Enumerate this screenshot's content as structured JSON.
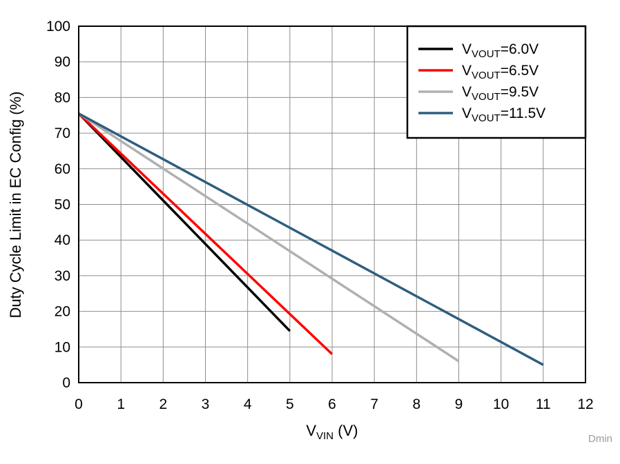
{
  "chart_data": {
    "type": "line",
    "title": "",
    "xlabel": {
      "main": "V",
      "sub": "VIN",
      "suffix": " (V)"
    },
    "ylabel": "Duty Cycle Limit in EC Config (%)",
    "xlim": [
      0,
      12
    ],
    "ylim": [
      0,
      100
    ],
    "x_ticks": [
      0,
      1,
      2,
      3,
      4,
      5,
      6,
      7,
      8,
      9,
      10,
      11,
      12
    ],
    "y_ticks": [
      0,
      10,
      20,
      30,
      40,
      50,
      60,
      70,
      80,
      90,
      100
    ],
    "grid": true,
    "legend_position": "top-right",
    "series": [
      {
        "label_main": "V",
        "label_sub": "VOUT",
        "label_suffix": "=6.0V",
        "color": "#000000",
        "x": [
          0,
          5
        ],
        "y": [
          75.5,
          14.5
        ]
      },
      {
        "label_main": "V",
        "label_sub": "VOUT",
        "label_suffix": "=6.5V",
        "color": "#ff0000",
        "x": [
          0,
          6
        ],
        "y": [
          75.5,
          8
        ]
      },
      {
        "label_main": "V",
        "label_sub": "VOUT",
        "label_suffix": "=9.5V",
        "color": "#b0b0b0",
        "x": [
          0,
          9
        ],
        "y": [
          75.5,
          6
        ]
      },
      {
        "label_main": "V",
        "label_sub": "VOUT",
        "label_suffix": "=11.5V",
        "color": "#2e5e7e",
        "x": [
          0,
          11
        ],
        "y": [
          75.5,
          5
        ]
      }
    ]
  },
  "watermark": "Dmin"
}
